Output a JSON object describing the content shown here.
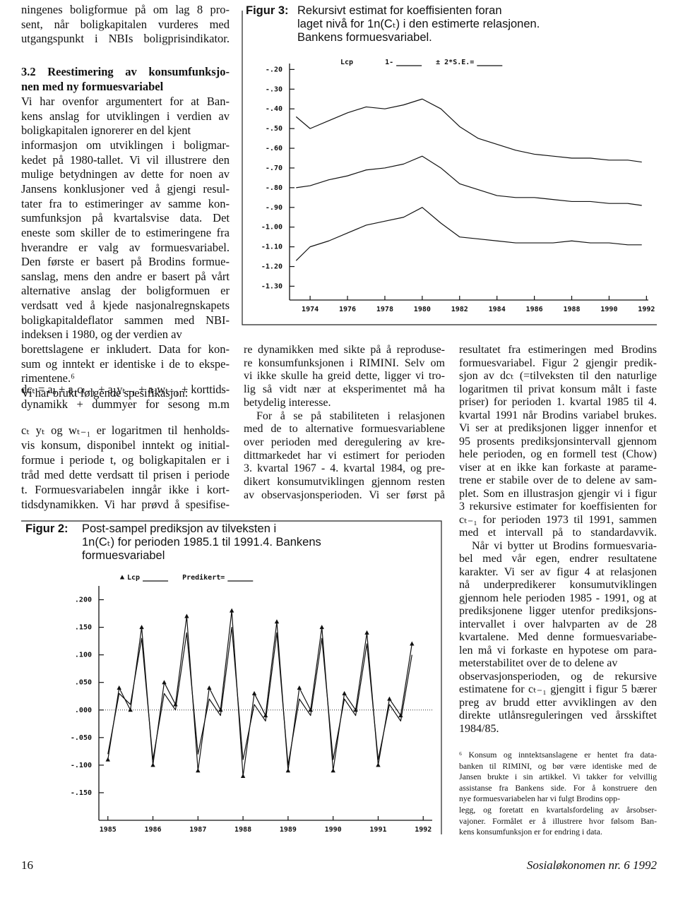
{
  "text": {
    "left_top": [
      [
        "ningenes boligformue på om lag 8 pro-",
        "sent, når boligkapitalen vurderes med",
        "utgangspunkt i NBIs boligprisindikator."
      ]
    ],
    "left_heading": [
      [
        "3.2 Reestimering av konsumfunksjo-",
        "nen med ny formuesvariabel"
      ]
    ],
    "left_body": [
      [
        "Vi har ovenfor argumentert for at Ban-",
        "kens anslag for utviklingen i verdien av",
        "boligkapitalen ignorerer en del kjent",
        "informasjon om utviklingen i boligmar-",
        "kedet på 1980-tallet. Vi vil illustrere den",
        "mulige betydningen av dette for noen av",
        "Jansens konklusjoner ved å gjengi resul-",
        "tater fra to estimeringer av samme kon-",
        "sumfunksjon på kvartalsvise data. Det",
        "eneste som skiller de to estimeringene fra",
        "hverandre er valg av formuesvariabel.",
        "Den første er basert på Brodins formue-",
        "sanslag, mens den andre er basert på vårt",
        "alternative anslag der boligformuen er",
        "verdsatt ved å kjede nasjonalregnskapets",
        "boligkapitaldeflator sammen med NBI-",
        "indeksen i 1980, og der verdien av",
        "borettslagene er inkludert. Data for kon-",
        "sum og inntekt er identiske i de to ekspe-",
        "rimentene.⁶"
      ],
      [
        "Vi har brukt følgende spesifikasjon:"
      ]
    ],
    "left_formula": [
      [
        "dcₜ = aₒ + a₁cₜ₋₁ + a₂yₜ₋₁ + a₃wₜ₋₁ + korttids-",
        "dynamikk + dummyer for sesong m.m"
      ]
    ],
    "left_body2": [
      [
        "cₜ yₜ og wₜ₋₁ er logaritmen til henholds-",
        "vis konsum, disponibel inntekt og initial-",
        "formue i periode t, og boligkapitalen er i",
        "tråd med dette verdsatt til prisen i periode",
        "t. Formuesvariabelen inngår ikke i kort-",
        "tidsdynamikken. Vi har prøvd å spesifise-"
      ]
    ],
    "middle": [
      [
        "re dynamikken med sikte på å reproduse-",
        "re konsumfunksjonen i RIMINI. Selv om",
        "vi ikke skulle ha greid dette, ligger vi tro-",
        "lig så vidt nær at eksperimentet må ha",
        "betydelig interesse."
      ],
      [
        "For å se på stabiliteten i relasjonen",
        "med de to alternative formuesvariablene",
        "over perioden med deregulering av kre-",
        "dittmarkedet har vi estimert for perioden",
        "3. kvartal 1967 - 4. kvartal 1984, og pre-",
        "dikert konsumutviklingen gjennom resten",
        "av observasjonsperioden. Vi ser først på"
      ]
    ],
    "right": [
      [
        "resultatet fra estimeringen med Brodins",
        "formuesvariabel. Figur 2 gjengir predik-",
        "sjon av dcₜ (=tilveksten til den naturlige",
        "logaritmen til privat konsum målt i faste",
        "priser) for perioden 1. kvartal 1985 til 4.",
        "kvartal 1991 når Brodins variabel brukes.",
        "Vi ser at prediksjonen ligger innenfor et",
        "95 prosents prediksjonsintervall gjennom",
        "hele perioden, og en formell test (Chow)",
        "viser at en ikke kan forkaste at parame-",
        "trene er stabile over de to delene av sam-",
        "plet. Som en illustrasjon gjengir vi i figur",
        "3 rekursive estimater for koeffisienten for",
        "cₜ₋₁ for perioden 1973 til 1991, sammen",
        "med et intervall på to standardavvik."
      ],
      [
        "Når vi bytter ut Brodins formuesvaria-",
        "bel med vår egen, endrer resultatene",
        "karakter. Vi ser av figur 4 at relasjonen",
        "nå underpredikerer konsumutviklingen",
        "gjennom hele perioden 1985 - 1991, og at",
        "prediksjonene ligger utenfor prediksjons-",
        "intervallet i over halvparten av de 28",
        "kvartalene. Med denne formuesvariabe-",
        "len må vi forkaste en hypotese om para-",
        "meterstabilitet over de to delene av",
        "observasjonsperioden, og de rekursive",
        "estimatene for cₜ₋₁ gjengitt i figur 5 bærer",
        "preg av brudd etter avviklingen av den",
        "direkte utlånsreguleringen ved årsskiftet",
        "1984/85."
      ]
    ],
    "footnote": [
      [
        "⁶ Konsum og inntektsanslagene er hentet fra data-",
        "banken til RIMINI, og bør være identiske med de",
        "Jansen brukte i sin artikkel. Vi takker for velvillig",
        "assistanse fra Bankens side. For å konstruere den",
        "nye formuesvariabelen har vi fulgt Brodins opp-",
        "legg, og foretatt en kvartalsfordeling av årsobser-",
        "vajoner. Formålet er å illustrere hvor følsom Ban-",
        "kens konsumfunksjon er for endring i data."
      ]
    ]
  },
  "footer": {
    "page_number": "16",
    "journal": "Sosialøkonomen nr. 6 1992"
  },
  "chart_data": [
    {
      "type": "line",
      "figure_label": "Figur 3:",
      "title": [
        "Rekursivt estimat for koeffisienten foran",
        "laget nivå for 1n(Cₜ) i den estimerte relasjonen.",
        "Bankens formuesvariabel."
      ],
      "legend_title": "Lcp",
      "x": [
        1973.25,
        1974,
        1975,
        1976,
        1977,
        1978,
        1979,
        1980,
        1981,
        1982,
        1983,
        1984,
        1985,
        1986,
        1987,
        1988,
        1989,
        1990,
        1991,
        1991.75
      ],
      "series": [
        {
          "name": "1-",
          "color": "#111",
          "values": [
            -0.8,
            -0.79,
            -0.76,
            -0.74,
            -0.71,
            -0.7,
            -0.68,
            -0.64,
            -0.7,
            -0.78,
            -0.81,
            -0.84,
            -0.85,
            -0.85,
            -0.86,
            -0.87,
            -0.87,
            -0.88,
            -0.88,
            -0.89
          ]
        },
        {
          "name": "± 2*S.E.=",
          "color": "#111",
          "values": [
            -0.44,
            -0.5,
            -0.46,
            -0.42,
            -0.39,
            -0.4,
            -0.38,
            -0.35,
            -0.4,
            -0.49,
            -0.55,
            -0.58,
            -0.61,
            -0.63,
            -0.64,
            -0.65,
            -0.65,
            -0.66,
            -0.66,
            -0.67
          ]
        },
        {
          "color": "#111",
          "values": [
            -1.17,
            -1.1,
            -1.07,
            -1.03,
            -0.99,
            -0.97,
            -0.95,
            -0.9,
            -0.98,
            -1.05,
            -1.06,
            -1.07,
            -1.08,
            -1.08,
            -1.08,
            -1.07,
            -1.08,
            -1.08,
            -1.09,
            -1.09
          ]
        }
      ],
      "xlim": [
        1972.9,
        1992.1
      ],
      "xticks": [
        1974,
        1976,
        1978,
        1980,
        1982,
        1984,
        1986,
        1988,
        1990,
        1992
      ],
      "ylim": [
        -1.37,
        -0.17
      ],
      "yticks": [
        {
          "value": -0.2,
          "label": "-.20"
        },
        {
          "value": -0.3,
          "label": "-.30"
        },
        {
          "value": -0.4,
          "label": "-.40"
        },
        {
          "value": -0.5,
          "label": "-.50"
        },
        {
          "value": -0.6,
          "label": "-.60"
        },
        {
          "value": -0.7,
          "label": "-.70"
        },
        {
          "value": -0.8,
          "label": "-.80"
        },
        {
          "value": -0.9,
          "label": "-.90"
        },
        {
          "value": -1,
          "label": "-1.00"
        },
        {
          "value": -1.1,
          "label": "-1.10"
        },
        {
          "value": -1.2,
          "label": "-1.20"
        },
        {
          "value": -1.3,
          "label": "-1.30"
        }
      ]
    },
    {
      "type": "line",
      "figure_label": "Figur 2:",
      "title": [
        "Post-sampel prediksjon av tilveksten i",
        "1n(Cₜ) for perioden 1985.1 til 1991.4. Bankens",
        "formuesvariabel"
      ],
      "x": [
        1985,
        1985.25,
        1985.5,
        1985.75,
        1986,
        1986.25,
        1986.5,
        1986.75,
        1987,
        1987.25,
        1987.5,
        1987.75,
        1988,
        1988.25,
        1988.5,
        1988.75,
        1989,
        1989.25,
        1989.5,
        1989.75,
        1990,
        1990.25,
        1990.5,
        1990.75,
        1991,
        1991.25,
        1991.5,
        1991.75
      ],
      "series": [
        {
          "name": "Lcp",
          "color": "#111",
          "marker": "triangle",
          "values": [
            -0.09,
            0.04,
            0.0,
            0.15,
            -0.1,
            0.05,
            0.01,
            0.17,
            -0.11,
            0.04,
            0.0,
            0.18,
            -0.12,
            0.03,
            -0.01,
            0.16,
            -0.11,
            0.04,
            0.0,
            0.15,
            -0.11,
            0.03,
            0.0,
            0.14,
            -0.1,
            0.02,
            -0.01,
            0.12
          ]
        },
        {
          "name": "Predikert=",
          "color": "#111",
          "values": [
            -0.08,
            0.03,
            0.01,
            0.13,
            -0.09,
            0.03,
            0.0,
            0.14,
            -0.08,
            0.02,
            -0.01,
            0.15,
            -0.09,
            0.01,
            -0.02,
            0.14,
            -0.1,
            0.02,
            -0.01,
            0.13,
            -0.09,
            0.02,
            -0.01,
            0.12,
            -0.09,
            0.01,
            -0.02,
            0.1
          ]
        }
      ],
      "xlim": [
        1984.8,
        1992.2
      ],
      "xticks": [
        1985,
        1986,
        1987,
        1988,
        1989,
        1990,
        1991,
        1992
      ],
      "ylim": [
        -0.2,
        0.225
      ],
      "yticks": [
        {
          "value": 0.2,
          "label": ".200"
        },
        {
          "value": 0.15,
          "label": ".150"
        },
        {
          "value": 0.1,
          "label": ".100"
        },
        {
          "value": 0.05,
          "label": ".050"
        },
        {
          "value": 0,
          "label": ".000"
        },
        {
          "value": -0.05,
          "label": "-.050"
        },
        {
          "value": -0.1,
          "label": "-.100"
        },
        {
          "value": -0.15,
          "label": "-.150"
        }
      ],
      "zero_line": true
    }
  ]
}
